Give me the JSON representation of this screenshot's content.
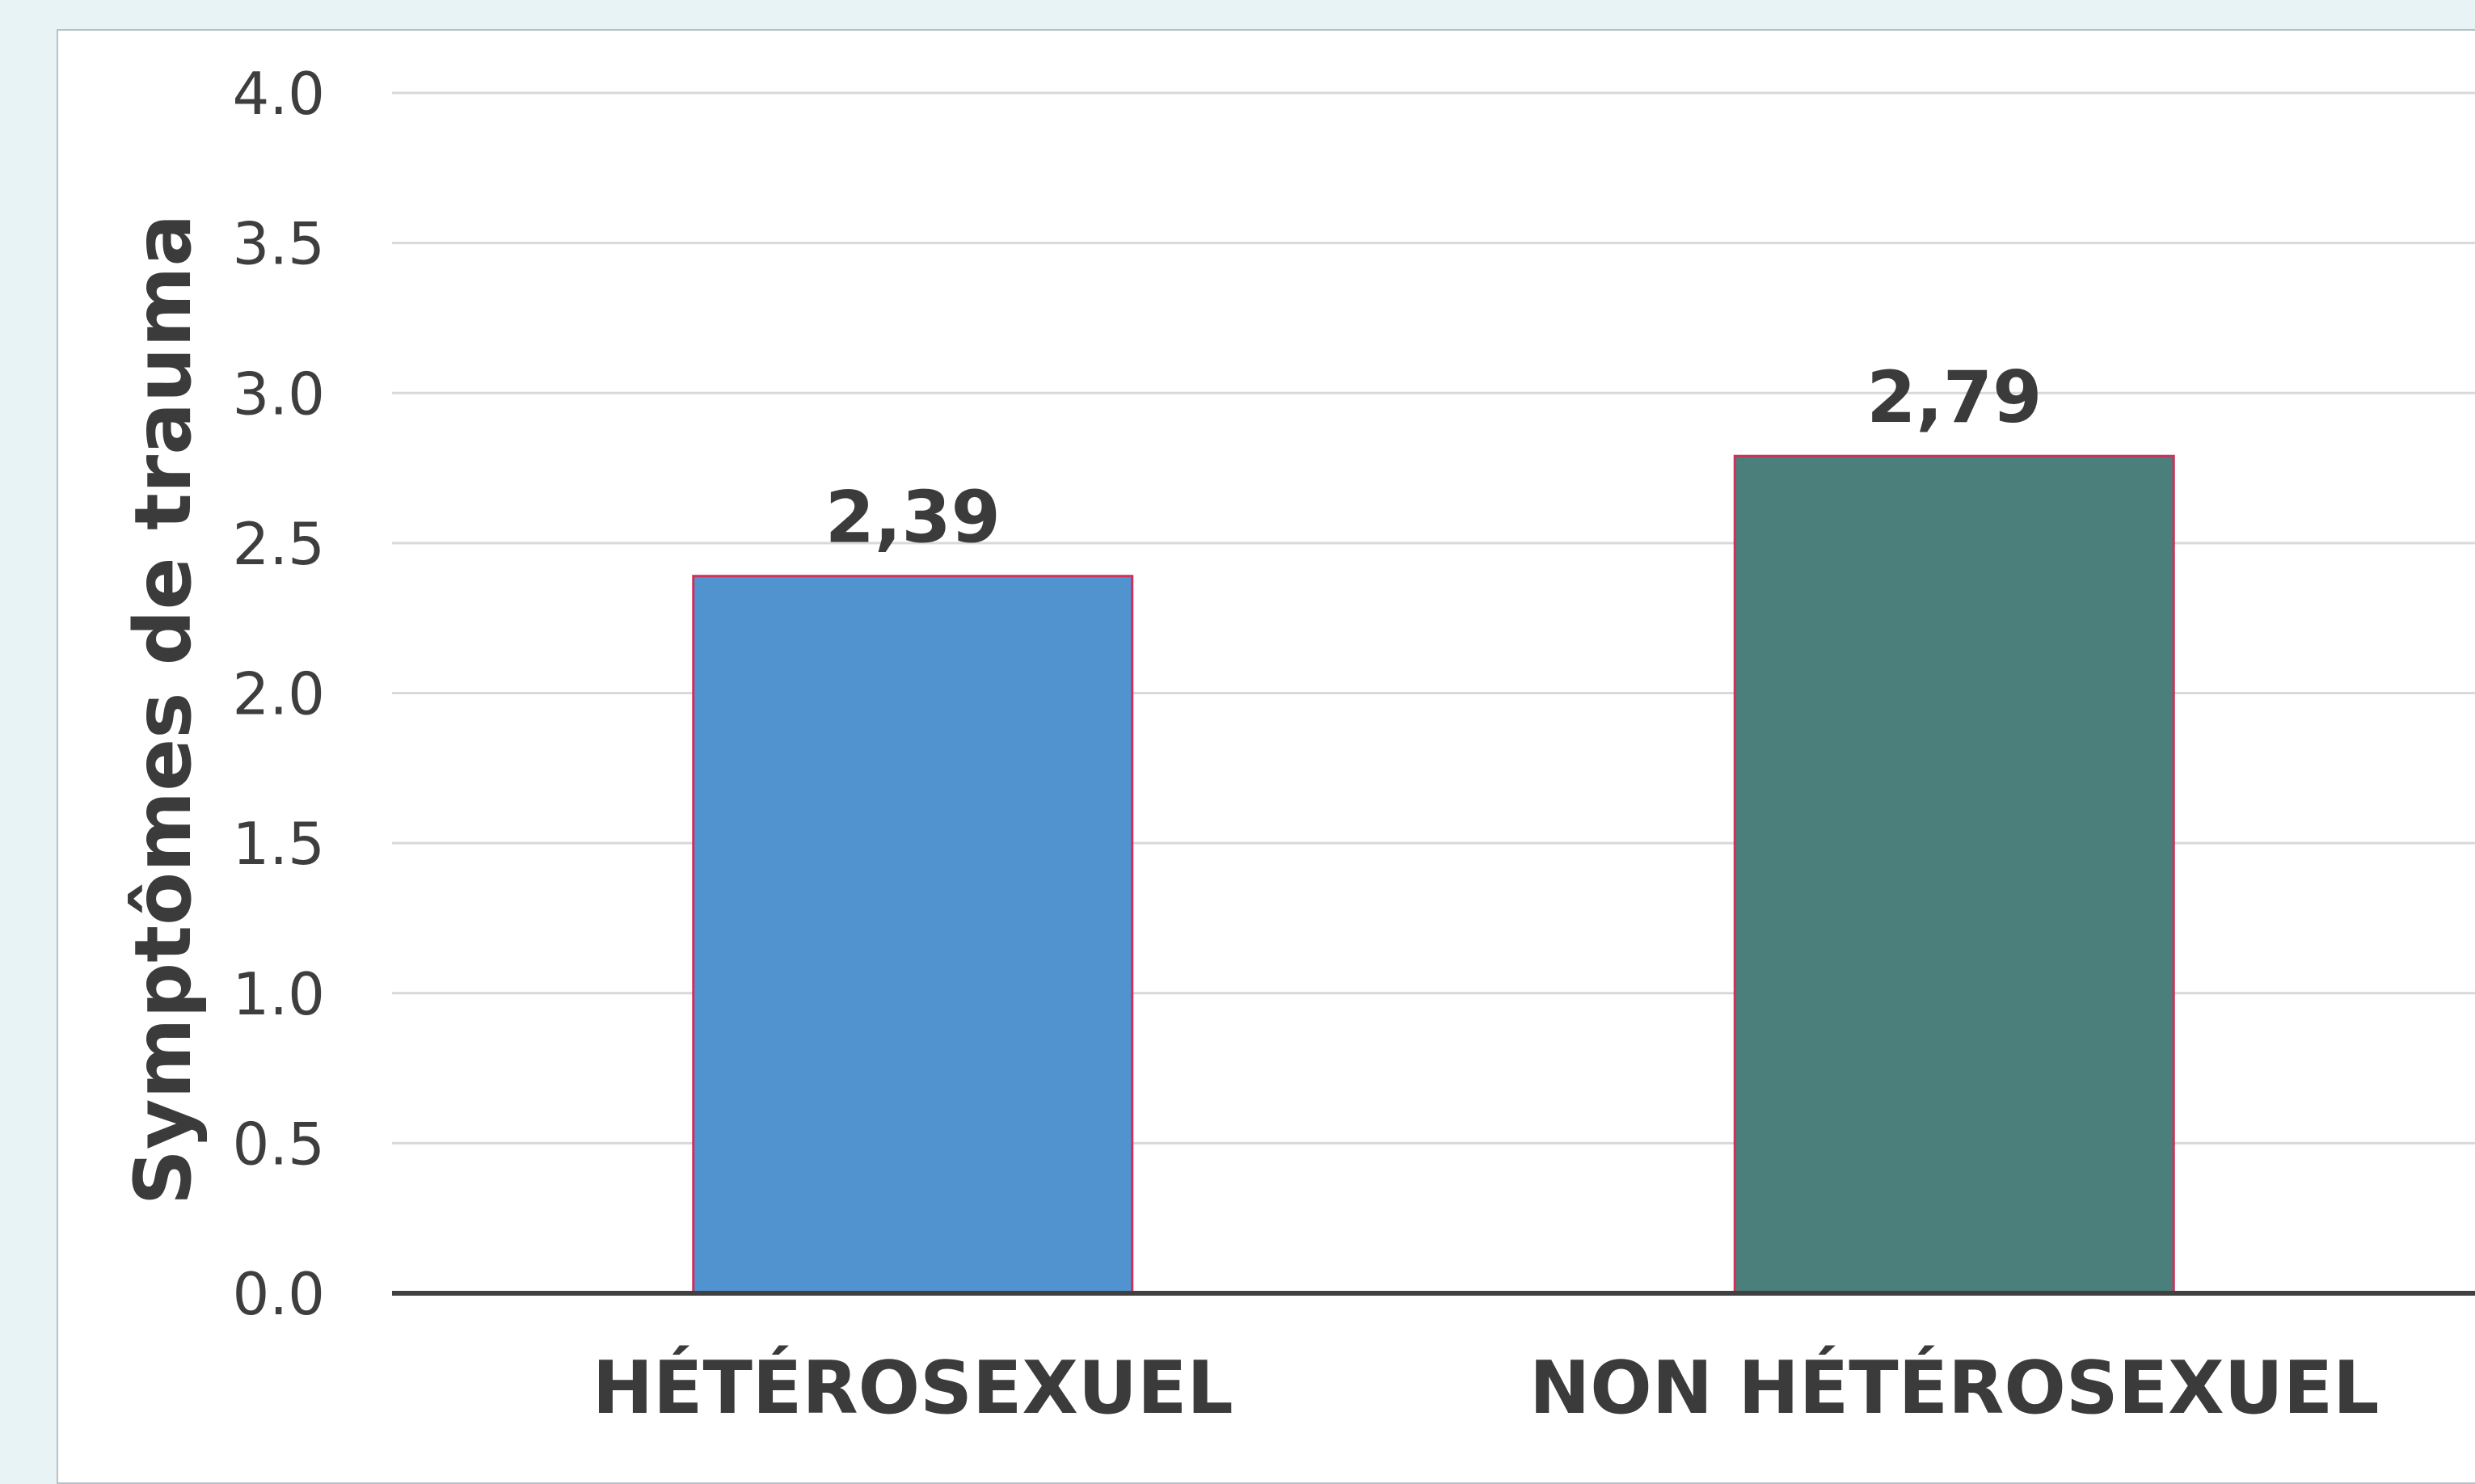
{
  "chart_data": {
    "type": "bar",
    "categories": [
      "HÉTÉROSEXUEL",
      "NON HÉTÉROSEXUEL"
    ],
    "values": [
      2.39,
      2.79
    ],
    "value_labels": [
      "2,39",
      "2,79"
    ],
    "ylabel": "Symptômes de trauma",
    "ylim": [
      0,
      4.0
    ],
    "yticks": [
      "0.0",
      "0.5",
      "1.0",
      "1.5",
      "2.0",
      "2.5",
      "3.0",
      "3.5",
      "4.0"
    ],
    "grid": true,
    "colors": [
      "#5193cf",
      "#4a7f7b"
    ],
    "bar_border_color": "#d0305a",
    "gridline_color": "#d9d9d9",
    "axis_color": "#404040"
  }
}
